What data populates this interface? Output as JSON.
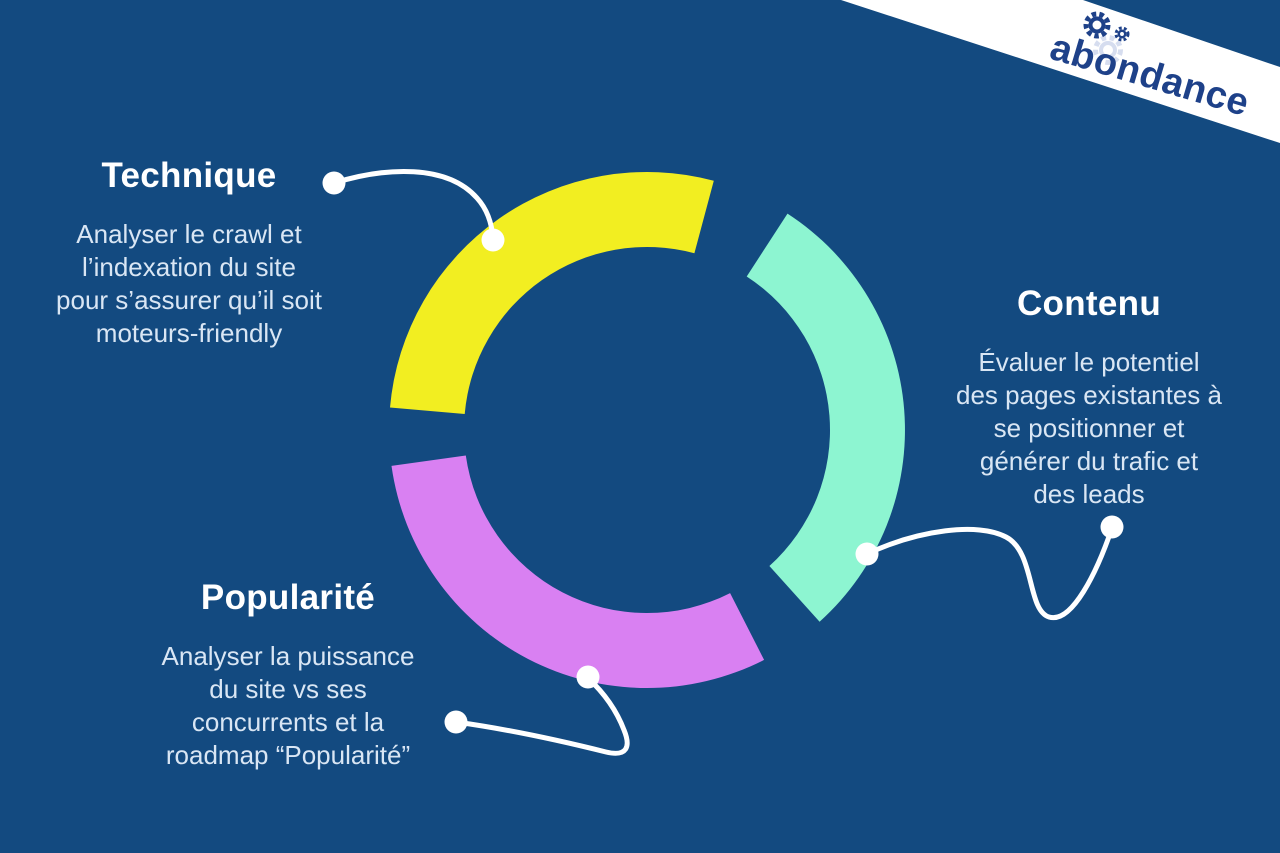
{
  "colors": {
    "background": "#134a80",
    "banner": "#ffffff",
    "connector": "#ffffff",
    "title_text": "#ffffff",
    "body_text": "#d9e6f4",
    "logo_blue": "#1e4189",
    "logo_gear_light": "#bcc8e6"
  },
  "logo": {
    "text": "abondance"
  },
  "sections": [
    {
      "id": "technique",
      "title": "Technique",
      "color": "#f2ee21",
      "lines": [
        "Analyser le crawl et",
        "l’indexation du site",
        "pour s’assurer qu’il soit",
        "moteurs-friendly"
      ]
    },
    {
      "id": "contenu",
      "title": "Contenu",
      "color": "#8df5d1",
      "lines": [
        "Évaluer le potentiel",
        "des pages existantes à",
        "se positionner et",
        "générer du trafic et",
        "des leads"
      ]
    },
    {
      "id": "popularite",
      "title": "Popularité",
      "color": "#d980f2",
      "lines": [
        "Analyser la puissance",
        "du site vs ses",
        "concurrents et la",
        "roadmap “Popularité”"
      ]
    }
  ]
}
